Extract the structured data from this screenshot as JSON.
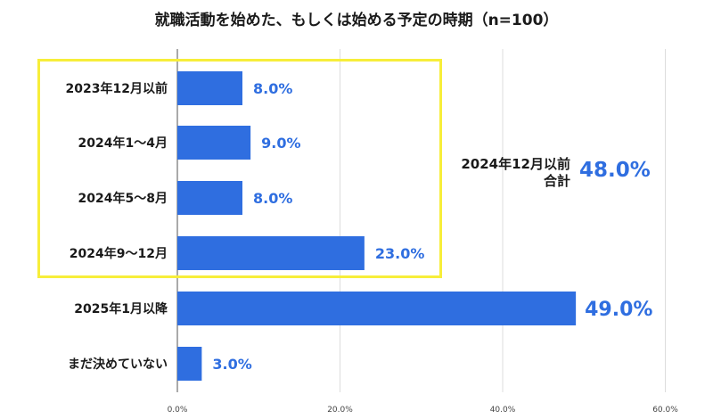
{
  "chart_data": {
    "type": "bar",
    "orientation": "horizontal",
    "title": "就職活動を始めた、もしくは始める予定の時期（n=100）",
    "categories": [
      "2023年12月以前",
      "2024年1〜4月",
      "2024年5〜8月",
      "2024年9〜12月",
      "2025年1月以降",
      "まだ決めていない"
    ],
    "values": [
      8.0,
      9.0,
      8.0,
      23.0,
      49.0,
      3.0
    ],
    "value_labels": [
      "8.0%",
      "9.0%",
      "8.0%",
      "23.0%",
      "49.0%",
      "3.0%"
    ],
    "xlim": [
      0,
      60
    ],
    "x_ticks": [
      "0.0%",
      "20.0%",
      "40.0%",
      "60.0%"
    ],
    "grid": true,
    "bar_color": "#2f6ee0",
    "label_color": "#2f6ee0",
    "highlight_color": "#f7ee3a",
    "annotation": {
      "label_line1": "2024年12月以前",
      "label_line2": "合計",
      "value": "48.0%"
    }
  }
}
